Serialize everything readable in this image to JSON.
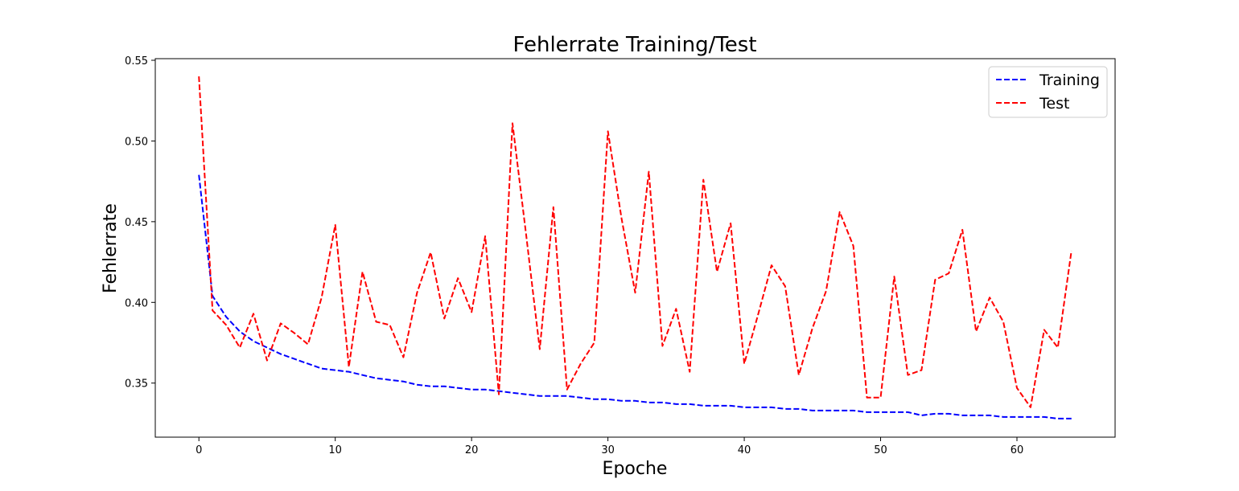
{
  "chart_data": {
    "type": "line",
    "title": "Fehlerrate Training/Test",
    "xlabel": "Epoche",
    "ylabel": "Fehlerrate",
    "xlim": [
      -3.2,
      67.2
    ],
    "ylim": [
      0.3165,
      0.551
    ],
    "xticks": [
      0,
      10,
      20,
      30,
      40,
      50,
      60
    ],
    "yticks": [
      0.35,
      0.4,
      0.45,
      0.5,
      0.55
    ],
    "ytick_labels": [
      "0.35",
      "0.40",
      "0.45",
      "0.50",
      "0.55"
    ],
    "grid": false,
    "legend_position": "top-right",
    "x": [
      0,
      1,
      2,
      3,
      4,
      5,
      6,
      7,
      8,
      9,
      10,
      11,
      12,
      13,
      14,
      15,
      16,
      17,
      18,
      19,
      20,
      21,
      22,
      23,
      24,
      25,
      26,
      27,
      28,
      29,
      30,
      31,
      32,
      33,
      34,
      35,
      36,
      37,
      38,
      39,
      40,
      41,
      42,
      43,
      44,
      45,
      46,
      47,
      48,
      49,
      50,
      51,
      52,
      53,
      54,
      55,
      56,
      57,
      58,
      59,
      60,
      61,
      62,
      63,
      64
    ],
    "series": [
      {
        "name": "Training",
        "color": "#0000ff",
        "linestyle": "dashed",
        "values": [
          0.479,
          0.404,
          0.391,
          0.382,
          0.376,
          0.372,
          0.368,
          0.365,
          0.362,
          0.359,
          0.358,
          0.357,
          0.355,
          0.353,
          0.352,
          0.351,
          0.349,
          0.348,
          0.348,
          0.347,
          0.346,
          0.346,
          0.345,
          0.344,
          0.343,
          0.342,
          0.342,
          0.342,
          0.341,
          0.34,
          0.34,
          0.339,
          0.339,
          0.338,
          0.338,
          0.337,
          0.337,
          0.336,
          0.336,
          0.336,
          0.335,
          0.335,
          0.335,
          0.334,
          0.334,
          0.333,
          0.333,
          0.333,
          0.333,
          0.332,
          0.332,
          0.332,
          0.332,
          0.33,
          0.331,
          0.331,
          0.33,
          0.33,
          0.33,
          0.329,
          0.329,
          0.329,
          0.329,
          0.328,
          0.328
        ]
      },
      {
        "name": "Test",
        "color": "#ff0000",
        "linestyle": "dashed",
        "values": [
          0.54,
          0.395,
          0.386,
          0.372,
          0.393,
          0.364,
          0.387,
          0.381,
          0.374,
          0.403,
          0.448,
          0.36,
          0.419,
          0.388,
          0.386,
          0.366,
          0.406,
          0.431,
          0.39,
          0.415,
          0.394,
          0.441,
          0.343,
          0.511,
          0.442,
          0.371,
          0.459,
          0.346,
          0.362,
          0.375,
          0.506,
          0.452,
          0.406,
          0.481,
          0.373,
          0.396,
          0.357,
          0.476,
          0.419,
          0.449,
          0.362,
          0.392,
          0.423,
          0.41,
          0.355,
          0.384,
          0.407,
          0.456,
          0.435,
          0.341,
          0.341,
          0.416,
          0.355,
          0.358,
          0.414,
          0.418,
          0.445,
          0.382,
          0.403,
          0.388,
          0.347,
          0.335,
          0.383,
          0.372,
          0.432
        ]
      }
    ]
  }
}
